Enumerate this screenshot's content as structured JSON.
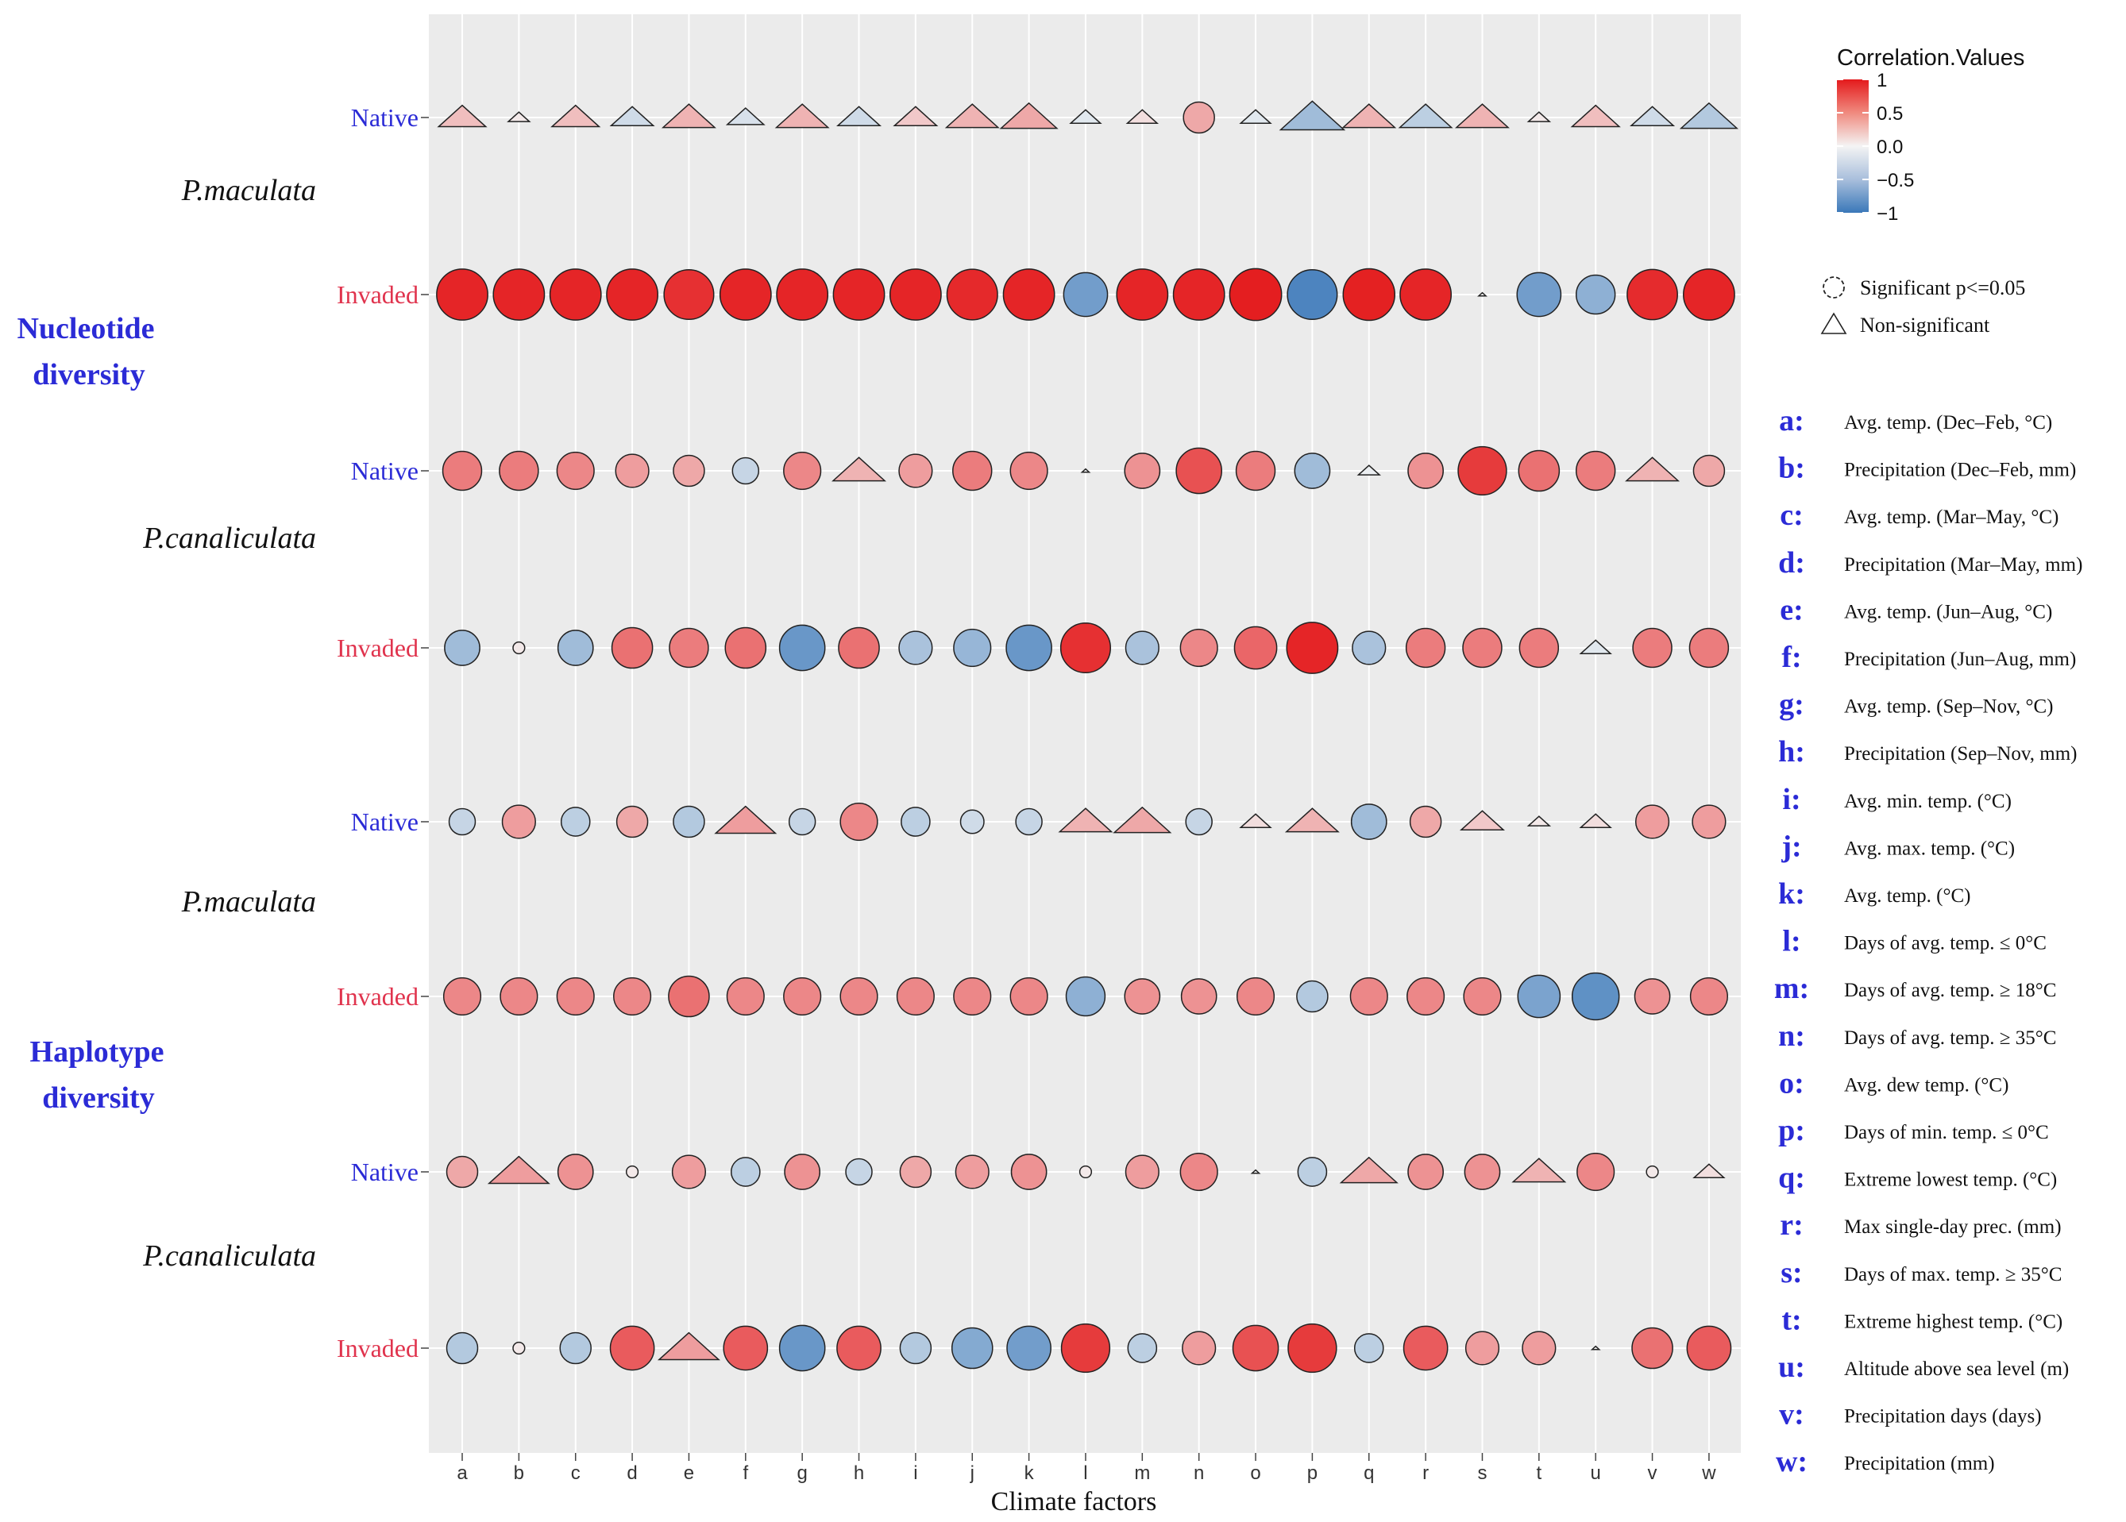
{
  "chart_data": {
    "type": "bubble-correlation",
    "title": "",
    "xlabel": "Climate factors",
    "x_categories": [
      "a",
      "b",
      "c",
      "d",
      "e",
      "f",
      "g",
      "h",
      "i",
      "j",
      "k",
      "l",
      "m",
      "n",
      "o",
      "p",
      "q",
      "r",
      "s",
      "t",
      "u",
      "v",
      "w"
    ],
    "groups": [
      {
        "metric": "Nucleotide diversity",
        "species": [
          {
            "name": "P.maculata",
            "rows": [
              {
                "label": "Native",
                "values": [
                  0.25,
                  0.05,
                  0.25,
                  -0.2,
                  0.3,
                  -0.15,
                  0.3,
                  -0.2,
                  0.2,
                  0.3,
                  0.35,
                  -0.1,
                  0.1,
                  0.35,
                  -0.1,
                  -0.45,
                  0.3,
                  -0.3,
                  0.3,
                  0.05,
                  0.25,
                  -0.2,
                  -0.35
                ],
                "significant": [
                  false,
                  false,
                  false,
                  false,
                  false,
                  false,
                  false,
                  false,
                  false,
                  false,
                  false,
                  false,
                  false,
                  true,
                  false,
                  false,
                  false,
                  false,
                  false,
                  false,
                  false,
                  false,
                  false
                ]
              },
              {
                "label": "Invaded",
                "values": [
                  0.95,
                  0.95,
                  0.95,
                  0.95,
                  0.9,
                  0.95,
                  0.95,
                  0.95,
                  0.95,
                  0.93,
                  0.95,
                  -0.7,
                  0.95,
                  0.95,
                  0.98,
                  -0.9,
                  0.97,
                  0.95,
                  0.0,
                  -0.7,
                  -0.55,
                  0.92,
                  0.95
                ],
                "significant": [
                  true,
                  true,
                  true,
                  true,
                  true,
                  true,
                  true,
                  true,
                  true,
                  true,
                  true,
                  true,
                  true,
                  true,
                  true,
                  true,
                  true,
                  true,
                  false,
                  true,
                  true,
                  true,
                  true
                ]
              }
            ]
          },
          {
            "name": "P.canaliculata",
            "rows": [
              {
                "label": "Native",
                "values": [
                  0.55,
                  0.55,
                  0.5,
                  0.4,
                  0.35,
                  -0.25,
                  0.5,
                  0.3,
                  0.4,
                  0.55,
                  0.5,
                  0.0,
                  0.45,
                  0.75,
                  0.55,
                  -0.45,
                  -0.05,
                  0.45,
                  0.85,
                  0.6,
                  0.55,
                  0.3,
                  0.35
                ],
                "significant": [
                  true,
                  true,
                  true,
                  true,
                  true,
                  true,
                  true,
                  false,
                  true,
                  true,
                  true,
                  false,
                  true,
                  true,
                  true,
                  true,
                  false,
                  true,
                  true,
                  true,
                  true,
                  false,
                  true
                ]
              },
              {
                "label": "Invaded",
                "values": [
                  -0.45,
                  0.05,
                  -0.45,
                  0.6,
                  0.55,
                  0.6,
                  -0.75,
                  0.6,
                  -0.4,
                  -0.5,
                  -0.75,
                  0.9,
                  -0.4,
                  0.5,
                  0.65,
                  0.95,
                  -0.4,
                  0.55,
                  0.55,
                  0.55,
                  -0.1,
                  0.55,
                  0.55
                ],
                "significant": [
                  true,
                  true,
                  true,
                  true,
                  true,
                  true,
                  true,
                  true,
                  true,
                  true,
                  true,
                  true,
                  true,
                  true,
                  true,
                  true,
                  true,
                  true,
                  true,
                  true,
                  false,
                  true,
                  true
                ]
              }
            ]
          }
        ]
      },
      {
        "metric": "Haplotype diversity",
        "species": [
          {
            "name": "P.maculata",
            "rows": [
              {
                "label": "Native",
                "values": [
                  -0.25,
                  0.4,
                  -0.3,
                  0.35,
                  -0.35,
                  0.4,
                  -0.25,
                  0.5,
                  -0.3,
                  -0.2,
                  -0.25,
                  0.3,
                  0.35,
                  -0.25,
                  0.1,
                  0.3,
                  -0.45,
                  0.35,
                  0.2,
                  0.05,
                  0.1,
                  0.4,
                  0.4
                ],
                "significant": [
                  true,
                  true,
                  true,
                  true,
                  true,
                  false,
                  true,
                  true,
                  true,
                  true,
                  true,
                  false,
                  false,
                  true,
                  false,
                  false,
                  true,
                  true,
                  false,
                  false,
                  false,
                  true,
                  true
                ]
              },
              {
                "label": "Invaded",
                "values": [
                  0.5,
                  0.5,
                  0.5,
                  0.5,
                  0.6,
                  0.5,
                  0.5,
                  0.5,
                  0.5,
                  0.5,
                  0.5,
                  -0.55,
                  0.45,
                  0.45,
                  0.5,
                  -0.35,
                  0.5,
                  0.5,
                  0.5,
                  -0.65,
                  -0.8,
                  0.45,
                  0.5
                ],
                "significant": [
                  true,
                  true,
                  true,
                  true,
                  true,
                  true,
                  true,
                  true,
                  true,
                  true,
                  true,
                  true,
                  true,
                  true,
                  true,
                  true,
                  true,
                  true,
                  true,
                  true,
                  true,
                  true,
                  true
                ]
              }
            ]
          },
          {
            "name": "P.canaliculata",
            "rows": [
              {
                "label": "Native",
                "values": [
                  0.35,
                  0.4,
                  0.45,
                  0.05,
                  0.4,
                  -0.3,
                  0.45,
                  -0.25,
                  0.35,
                  0.4,
                  0.45,
                  0.05,
                  0.4,
                  0.5,
                  0.0,
                  -0.3,
                  0.35,
                  0.45,
                  0.45,
                  0.3,
                  0.5,
                  0.05,
                  0.1
                ],
                "significant": [
                  true,
                  false,
                  true,
                  true,
                  true,
                  true,
                  true,
                  true,
                  true,
                  true,
                  true,
                  true,
                  true,
                  true,
                  false,
                  true,
                  false,
                  true,
                  true,
                  false,
                  true,
                  true,
                  false
                ]
              },
              {
                "label": "Invaded",
                "values": [
                  -0.35,
                  0.05,
                  -0.35,
                  0.7,
                  0.4,
                  0.7,
                  -0.75,
                  0.7,
                  -0.35,
                  -0.6,
                  -0.7,
                  0.85,
                  -0.3,
                  0.4,
                  0.75,
                  0.85,
                  -0.3,
                  0.7,
                  0.4,
                  0.4,
                  0.0,
                  0.6,
                  0.7
                ],
                "significant": [
                  true,
                  true,
                  true,
                  true,
                  false,
                  true,
                  true,
                  true,
                  true,
                  true,
                  true,
                  true,
                  true,
                  true,
                  true,
                  true,
                  true,
                  true,
                  true,
                  true,
                  false,
                  true,
                  true
                ]
              }
            ]
          }
        ]
      }
    ],
    "colorbar": {
      "title": "Correlation.Values",
      "range": [
        -1,
        1
      ],
      "tick_labels": [
        "1",
        "0.5",
        "0.0",
        "−0.5",
        "−1"
      ],
      "tick_values": [
        1,
        0.5,
        0,
        -0.5,
        -1
      ],
      "low_color": "#3a78b9",
      "mid_color": "#f4f4f4",
      "high_color": "#e41a1c"
    },
    "shape_legend": [
      {
        "symbol": "circle",
        "label": "Significant p<=0.05"
      },
      {
        "symbol": "triangle",
        "label": "Non-significant"
      }
    ],
    "factor_legend": [
      {
        "key": "a:",
        "desc": "Avg. temp. (Dec–Feb, °C)"
      },
      {
        "key": "b:",
        "desc": "Precipitation (Dec–Feb, mm)"
      },
      {
        "key": "c:",
        "desc": "Avg. temp. (Mar–May, °C)"
      },
      {
        "key": "d:",
        "desc": "Precipitation (Mar–May, mm)"
      },
      {
        "key": "e:",
        "desc": "Avg. temp. (Jun–Aug, °C)"
      },
      {
        "key": "f:",
        "desc": "Precipitation (Jun–Aug, mm)"
      },
      {
        "key": "g:",
        "desc": "Avg. temp. (Sep–Nov, °C)"
      },
      {
        "key": "h:",
        "desc": "Precipitation (Sep–Nov, mm)"
      },
      {
        "key": "i:",
        "desc": "Avg. min. temp. (°C)"
      },
      {
        "key": "j:",
        "desc": "Avg. max. temp. (°C)"
      },
      {
        "key": "k:",
        "desc": "Avg. temp. (°C)"
      },
      {
        "key": "l:",
        "desc": "Days of avg. temp. ≤ 0°C"
      },
      {
        "key": "m:",
        "desc": "Days of avg. temp. ≥ 18°C"
      },
      {
        "key": "n:",
        "desc": "Days of avg. temp. ≥ 35°C"
      },
      {
        "key": "o:",
        "desc": "Avg. dew temp. (°C)"
      },
      {
        "key": "p:",
        "desc": "Days of min. temp. ≤ 0°C"
      },
      {
        "key": "q:",
        "desc": "Extreme lowest temp. (°C)"
      },
      {
        "key": "r:",
        "desc": "Max single-day prec. (mm)"
      },
      {
        "key": "s:",
        "desc": "Days of max. temp. ≥ 35°C"
      },
      {
        "key": "t:",
        "desc": "Extreme highest temp. (°C)"
      },
      {
        "key": "u:",
        "desc": "Altitude above sea level (m)"
      },
      {
        "key": "v:",
        "desc": "Precipitation days (days)"
      },
      {
        "key": "w:",
        "desc": "Precipitation (mm)"
      }
    ],
    "colors": {
      "panel_bg": "#ebebeb",
      "gridline": "#ffffff",
      "native_label": "#2b2bd6",
      "invaded_label": "#e0334d",
      "metric_label": "#2b2bd6",
      "legend_key": "#2b2bd6"
    }
  }
}
